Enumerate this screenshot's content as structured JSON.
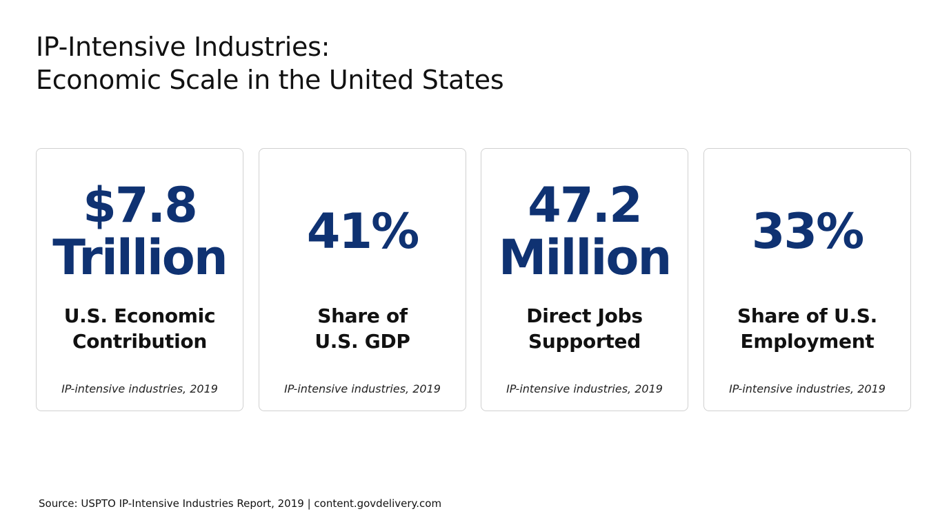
{
  "title": {
    "line1": "IP-Intensive Industries:",
    "line2": "Economic Scale in the United States"
  },
  "colors": {
    "value_text": "#0f3272",
    "card_border": "#d0d0d0",
    "background": "#ffffff"
  },
  "cards": [
    {
      "value_line1": "$7.8",
      "value_line2": "Trillion",
      "label_line1": "U.S. Economic",
      "label_line2": "Contribution",
      "note": "IP-intensive industries, 2019"
    },
    {
      "value_line1": "41%",
      "value_line2": "",
      "label_line1": "Share of",
      "label_line2": "U.S. GDP",
      "note": "IP-intensive industries, 2019"
    },
    {
      "value_line1": "47.2",
      "value_line2": "Million",
      "label_line1": "Direct Jobs",
      "label_line2": "Supported",
      "note": "IP-intensive industries, 2019"
    },
    {
      "value_line1": "33%",
      "value_line2": "",
      "label_line1": "Share of U.S.",
      "label_line2": "Employment",
      "note": "IP-intensive industries, 2019"
    }
  ],
  "source": "Source: USPTO IP-Intensive Industries Report, 2019 | content.govdelivery.com"
}
